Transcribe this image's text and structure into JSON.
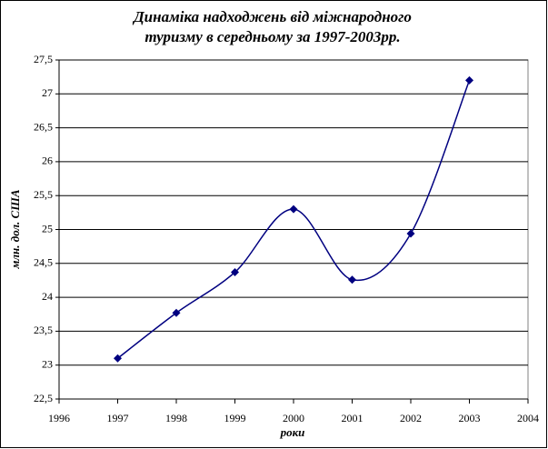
{
  "chart_data": {
    "type": "line",
    "title": [
      "Динаміка надходжень від міжнародного",
      "туризму в середньому за 1997-2003рр."
    ],
    "x_label": "роки",
    "y_label": "млн. дол. США",
    "x": [
      1997,
      1998,
      1999,
      2000,
      2001,
      2002,
      2003
    ],
    "series": [
      {
        "color": "#000080",
        "values": [
          23.1,
          23.77,
          24.37,
          25.3,
          24.26,
          24.94,
          27.2
        ]
      }
    ],
    "smooth": true,
    "marker": "diamond",
    "xlim": [
      1996,
      2004
    ],
    "xticks": [
      1996,
      1997,
      1998,
      1999,
      2000,
      2001,
      2002,
      2003,
      2004
    ],
    "ylim": [
      22.5,
      27.5
    ],
    "yticks": [
      {
        "value": 22.5,
        "label": "22,5"
      },
      23,
      {
        "value": 23.5,
        "label": "23,5"
      },
      24,
      {
        "value": 24.5,
        "label": "24,5"
      },
      25,
      {
        "value": 25.5,
        "label": "25,5"
      },
      26,
      {
        "value": 26.5,
        "label": "26,5"
      },
      27,
      {
        "value": 27.5,
        "label": "27,5"
      }
    ],
    "grid": true
  }
}
